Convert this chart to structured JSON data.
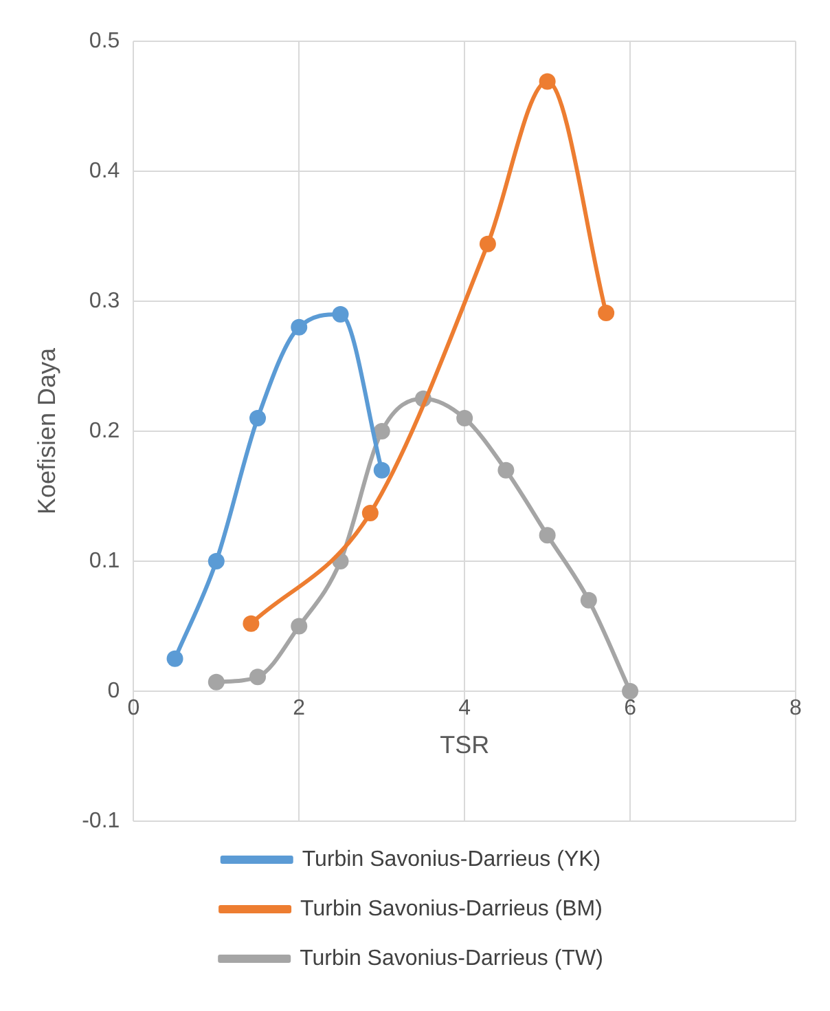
{
  "chart_data": {
    "type": "line",
    "xlabel": "TSR",
    "ylabel": "Koefisien Daya",
    "xlim": [
      0,
      8
    ],
    "xticks": [
      0,
      2,
      4,
      6,
      8
    ],
    "ylim": [
      -0.1,
      0.5
    ],
    "yticks": [
      -0.1,
      0,
      0.1,
      0.2,
      0.3,
      0.4,
      0.5
    ],
    "grid": true,
    "legend": "bottom",
    "marker": "circle",
    "line_style": "solid",
    "series": [
      {
        "name": "Turbin Savonius-Darrieus (YK)",
        "color": "#5b9bd5",
        "x": [
          0.5,
          1,
          1.5,
          2,
          2.5,
          3
        ],
        "values": [
          0.025,
          0.1,
          0.21,
          0.28,
          0.29,
          0.17
        ]
      },
      {
        "name": "Turbin Savonius-Darrieus (BM)",
        "color": "#ed7d31",
        "x": [
          1.42,
          2.86,
          4.28,
          5,
          5.71
        ],
        "values": [
          0.052,
          0.137,
          0.344,
          0.469,
          0.291
        ]
      },
      {
        "name": "Turbin Savonius-Darrieus (TW)",
        "color": "#a5a5a5",
        "x": [
          1,
          1.5,
          2,
          2.5,
          3,
          3.5,
          4,
          4.5,
          5,
          5.5,
          6
        ],
        "values": [
          0.007,
          0.011,
          0.05,
          0.1,
          0.2,
          0.225,
          0.21,
          0.17,
          0.12,
          0.07,
          0
        ]
      }
    ]
  }
}
